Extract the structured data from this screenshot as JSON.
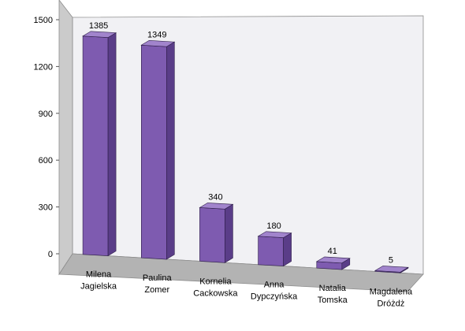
{
  "chart_data": {
    "type": "bar",
    "title": "",
    "xlabel": "",
    "ylabel": "",
    "categories": [
      "Milena Jagielska",
      "Paulina Zomer",
      "Kornelia Cackowska",
      "Anna Dypczyńska",
      "Natalia Tomska",
      "Magdalena Dróżdż"
    ],
    "category_lines": [
      [
        "Milena",
        "Jagielska"
      ],
      [
        "Paulina",
        "Zomer"
      ],
      [
        "Kornelia",
        "Cackowska"
      ],
      [
        "Anna",
        "Dypczyńska"
      ],
      [
        "Natalia",
        "Tomska"
      ],
      [
        "Magdalena",
        "Dróżdż"
      ]
    ],
    "values": [
      1385,
      1349,
      340,
      180,
      41,
      5
    ],
    "value_labels": [
      "1385",
      "1349",
      "340",
      "180",
      "41",
      "5"
    ],
    "yticks": [
      0,
      300,
      600,
      900,
      1200,
      1500
    ],
    "ytick_labels": [
      "0",
      "300",
      "600",
      "900",
      "1200",
      "1500"
    ],
    "ylim": [
      0,
      1500
    ],
    "grid": false,
    "legend": "none",
    "three_d": true,
    "colors": {
      "bar_front": "#7e5bb0",
      "bar_side": "#5a3d88",
      "bar_top": "#a184cc",
      "bar_outline": "#2c1c47",
      "back_wall": "#f1f1f4",
      "side_wall": "#cbcbcb",
      "floor": "#b3b3b3",
      "wall_edge": "#8c8c8c"
    }
  }
}
